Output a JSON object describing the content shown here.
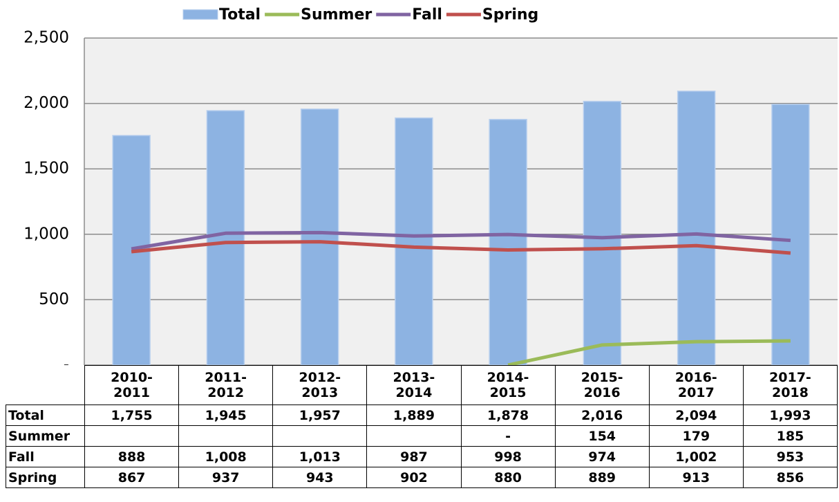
{
  "chart_data": {
    "type": "bar",
    "legend": "top",
    "grid": true,
    "categories": [
      "2010-2011",
      "2011-2012",
      "2012-2013",
      "2013-2014",
      "2014-2015",
      "2015-2016",
      "2016-2017",
      "2017-2018"
    ],
    "ylim": [
      0,
      2500
    ],
    "yticks": [
      {
        "value": 0,
        "label": "-"
      },
      500,
      {
        "value": 1000,
        "label": "1,000"
      },
      {
        "value": 1500,
        "label": "1,500"
      },
      {
        "value": 2000,
        "label": "2,000"
      },
      {
        "value": 2500,
        "label": "2,500"
      }
    ],
    "series": [
      {
        "name": "Total",
        "type": "bar",
        "color": "#8db3e2",
        "values": [
          1755,
          1945,
          1957,
          1889,
          1878,
          2016,
          2094,
          1993
        ],
        "value_labels": [
          "1,755",
          "1,945",
          "1,957",
          "1,889",
          "1,878",
          "2,016",
          "2,094",
          "1,993"
        ]
      },
      {
        "name": "Summer",
        "type": "line",
        "color": "#9bbb59",
        "values": [
          null,
          null,
          null,
          null,
          0,
          154,
          179,
          185
        ],
        "value_labels": [
          null,
          null,
          null,
          null,
          "-",
          "154",
          "179",
          "185"
        ]
      },
      {
        "name": "Fall",
        "type": "line",
        "color": "#8064a2",
        "values": [
          888,
          1008,
          1013,
          987,
          998,
          974,
          1002,
          953
        ],
        "value_labels": [
          "888",
          "1,008",
          "1,013",
          "987",
          "998",
          "974",
          "1,002",
          "953"
        ]
      },
      {
        "name": "Spring",
        "type": "line",
        "color": "#c0504d",
        "values": [
          867,
          937,
          943,
          902,
          880,
          889,
          913,
          856
        ],
        "value_labels": [
          "867",
          "937",
          "943",
          "902",
          "880",
          "889",
          "913",
          "856"
        ]
      }
    ]
  }
}
